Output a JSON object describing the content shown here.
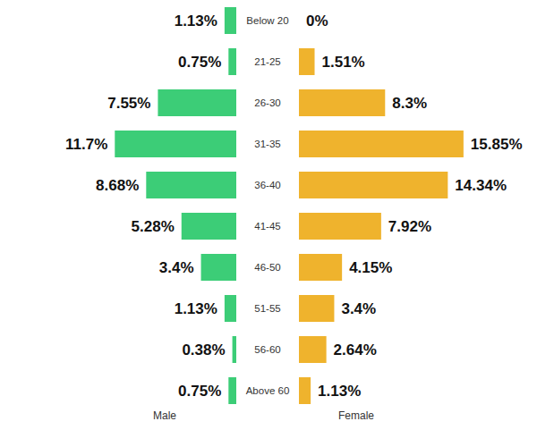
{
  "chart_data": {
    "type": "bar",
    "orientation": "horizontal",
    "categories": [
      "Below 20",
      "21-25",
      "26-30",
      "31-35",
      "36-40",
      "41-45",
      "46-50",
      "51-55",
      "56-60",
      "Above 60"
    ],
    "series": [
      {
        "name": "Male",
        "color": "#3ccd77",
        "values": [
          1.13,
          0.75,
          7.55,
          11.7,
          8.68,
          5.28,
          3.4,
          1.13,
          0.38,
          0.75
        ],
        "value_labels": [
          "1.13%",
          "0.75%",
          "7.55%",
          "11.7%",
          "8.68%",
          "5.28%",
          "3.4%",
          "1.13%",
          "0.38%",
          "0.75%"
        ]
      },
      {
        "name": "Female",
        "color": "#efb32d",
        "values": [
          0,
          1.51,
          8.3,
          15.85,
          14.34,
          7.92,
          4.15,
          3.4,
          2.64,
          1.13
        ],
        "value_labels": [
          "0%",
          "1.51%",
          "8.3%",
          "15.85%",
          "14.34%",
          "7.92%",
          "4.15%",
          "3.4%",
          "2.64%",
          "1.13%"
        ]
      }
    ],
    "xlim": [
      0,
      16
    ],
    "data_labels": true,
    "tick_labels": "y"
  }
}
